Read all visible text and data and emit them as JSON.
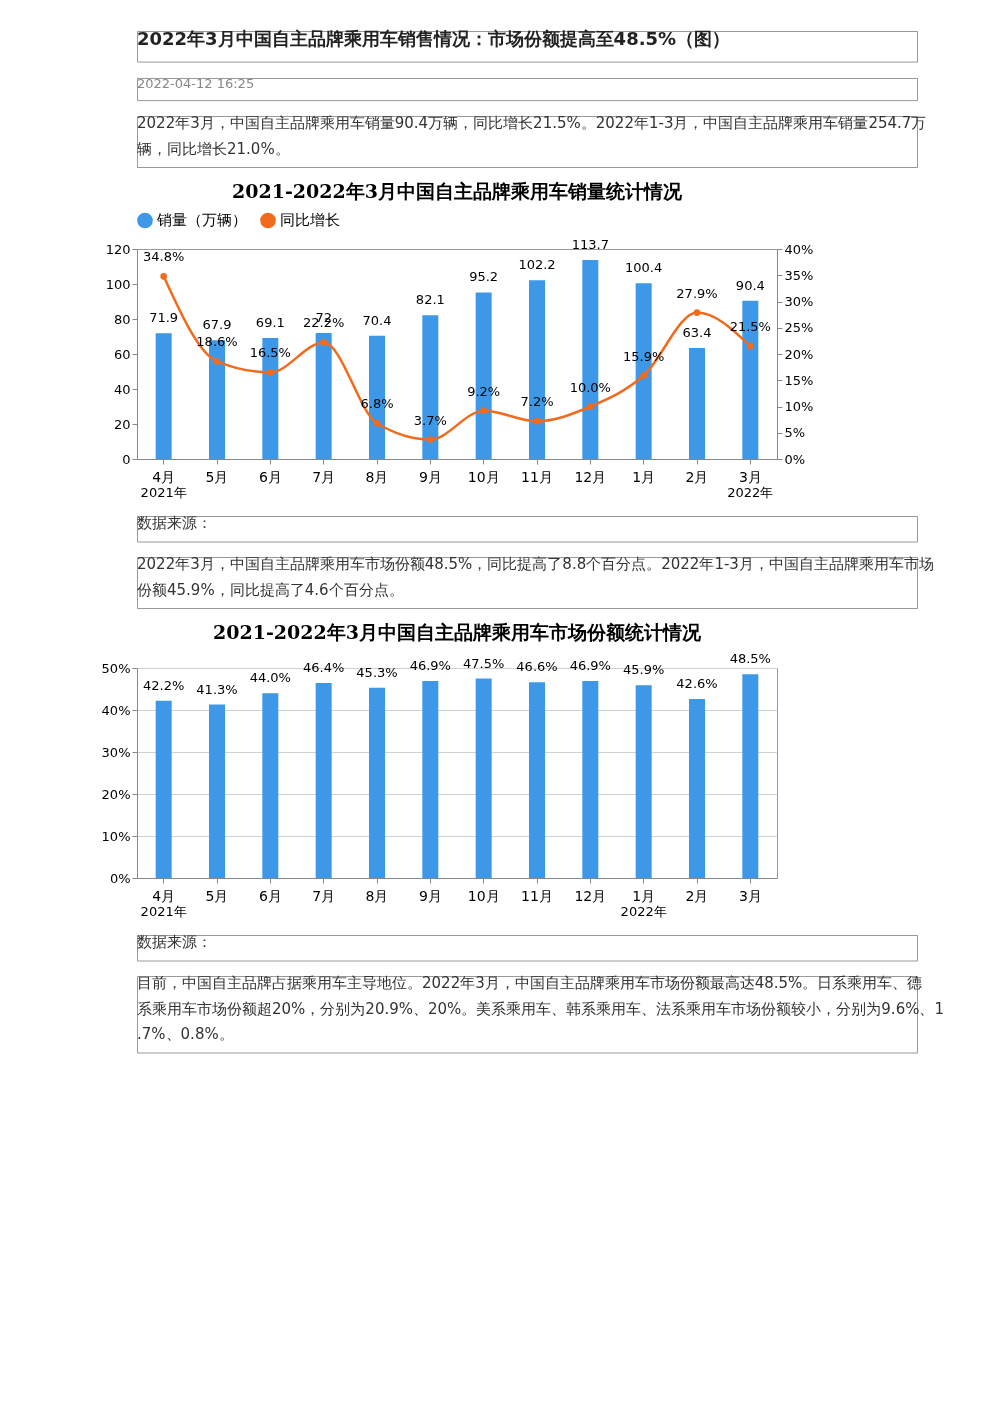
{
  "chart_data": [
    {
      "type": "bar",
      "title": "2021-2022年3月中国自主品牌乘用车销量统计情况",
      "annotations": [
        "2022年3月中国自主品牌乘用车销售情况：市场份额提高至48.5%（图）",
        "2022-04-12 16:25",
        "2022年3月，中国自主品牌乘用车销量90.4万辆，同比增长21.5%。2022年1-3月，中国自主品牌乘用车销量254.7万辆，同比增长21.0%。",
        "2021年",
        "2022年",
        "数据来源："
      ],
      "categories": [
        "4月",
        "5月",
        "6月",
        "7月",
        "8月",
        "9月",
        "10月",
        "11月",
        "12月",
        "1月",
        "2月",
        "3月"
      ],
      "series": [
        {
          "name": "销量（万辆）",
          "type": "bar",
          "color": "#3d98e8",
          "values": [
            71.9,
            67.9,
            69.1,
            72,
            70.4,
            82.1,
            95.2,
            102.2,
            113.7,
            100.4,
            63.4,
            90.4
          ],
          "value_labels": [
            "71.9",
            "67.9",
            "69.1",
            "72",
            "70.4",
            "82.1",
            "95.2",
            "102.2",
            "113.7",
            "100.4",
            "63.4",
            "90.4"
          ]
        },
        {
          "name": "同比增长",
          "type": "line",
          "axis": "y2",
          "color": "#f26b1d",
          "values": [
            34.8,
            18.6,
            16.5,
            22.2,
            6.8,
            3.7,
            9.2,
            7.2,
            10.0,
            15.9,
            27.9,
            21.5
          ],
          "value_labels": [
            "34.8%",
            "18.6%",
            "16.5%",
            "22.2%",
            "6.8%",
            "3.7%",
            "9.2%",
            "7.2%",
            "10.0%",
            "15.9%",
            "27.9%",
            "21.5%"
          ]
        }
      ],
      "ylim": [
        0,
        120
      ],
      "yticks": [
        0,
        20,
        40,
        60,
        80,
        100,
        120
      ],
      "y2lim": [
        0,
        40
      ],
      "y2ticks": [
        {
          "value": 0,
          "label": "0%"
        },
        {
          "value": 5,
          "label": "5%"
        },
        {
          "value": 10,
          "label": "10%"
        },
        {
          "value": 15,
          "label": "15%"
        },
        {
          "value": 20,
          "label": "20%"
        },
        {
          "value": 25,
          "label": "25%"
        },
        {
          "value": 30,
          "label": "30%"
        },
        {
          "value": 35,
          "label": "35%"
        },
        {
          "value": 40,
          "label": "40%"
        }
      ],
      "legend": "top",
      "marker": "circle",
      "line_style": "solid"
    },
    {
      "type": "bar",
      "title": "2021-2022年3月中国自主品牌乘用车市场份额统计情况",
      "annotations": [
        "2022年3月，中国自主品牌乘用车市场份额48.5%，同比提高了8.8个百分点。2022年1-3月，中国自主品牌乘用车市场份额45.9%，同比提高了4.6个百分点。",
        "2021年",
        "2022年",
        "数据来源：",
        "目前，中国自主品牌占据乘用车主导地位。2022年3月，中国自主品牌乘用车市场份额最高达48.5%。日系乘用车、德系乘用车市场份额超20%，分别为20.9%、20%。美系乘用车、韩系乘用车、法系乘用车市场份额较小，分别为9.6%、1.7%、0.8%。"
      ],
      "categories": [
        "4月",
        "5月",
        "6月",
        "7月",
        "8月",
        "9月",
        "10月",
        "11月",
        "12月",
        "1月",
        "2月",
        "3月"
      ],
      "values": [
        42.2,
        41.3,
        44.0,
        46.4,
        45.3,
        46.9,
        47.5,
        46.6,
        46.9,
        45.9,
        42.6,
        48.5
      ],
      "value_labels": [
        "42.2%",
        "41.3%",
        "44.0%",
        "46.4%",
        "45.3%",
        "46.9%",
        "47.5%",
        "46.6%",
        "46.9%",
        "45.9%",
        "42.6%",
        "48.5%"
      ],
      "color": "#3d98e8",
      "ylim": [
        0,
        50
      ],
      "yticks": [
        {
          "value": 0,
          "label": "0%"
        },
        {
          "value": 10,
          "label": "10%"
        },
        {
          "value": 20,
          "label": "20%"
        },
        {
          "value": 30,
          "label": "30%"
        },
        {
          "value": 40,
          "label": "40%"
        },
        {
          "value": 50,
          "label": "50%"
        }
      ],
      "grid": "y"
    }
  ]
}
